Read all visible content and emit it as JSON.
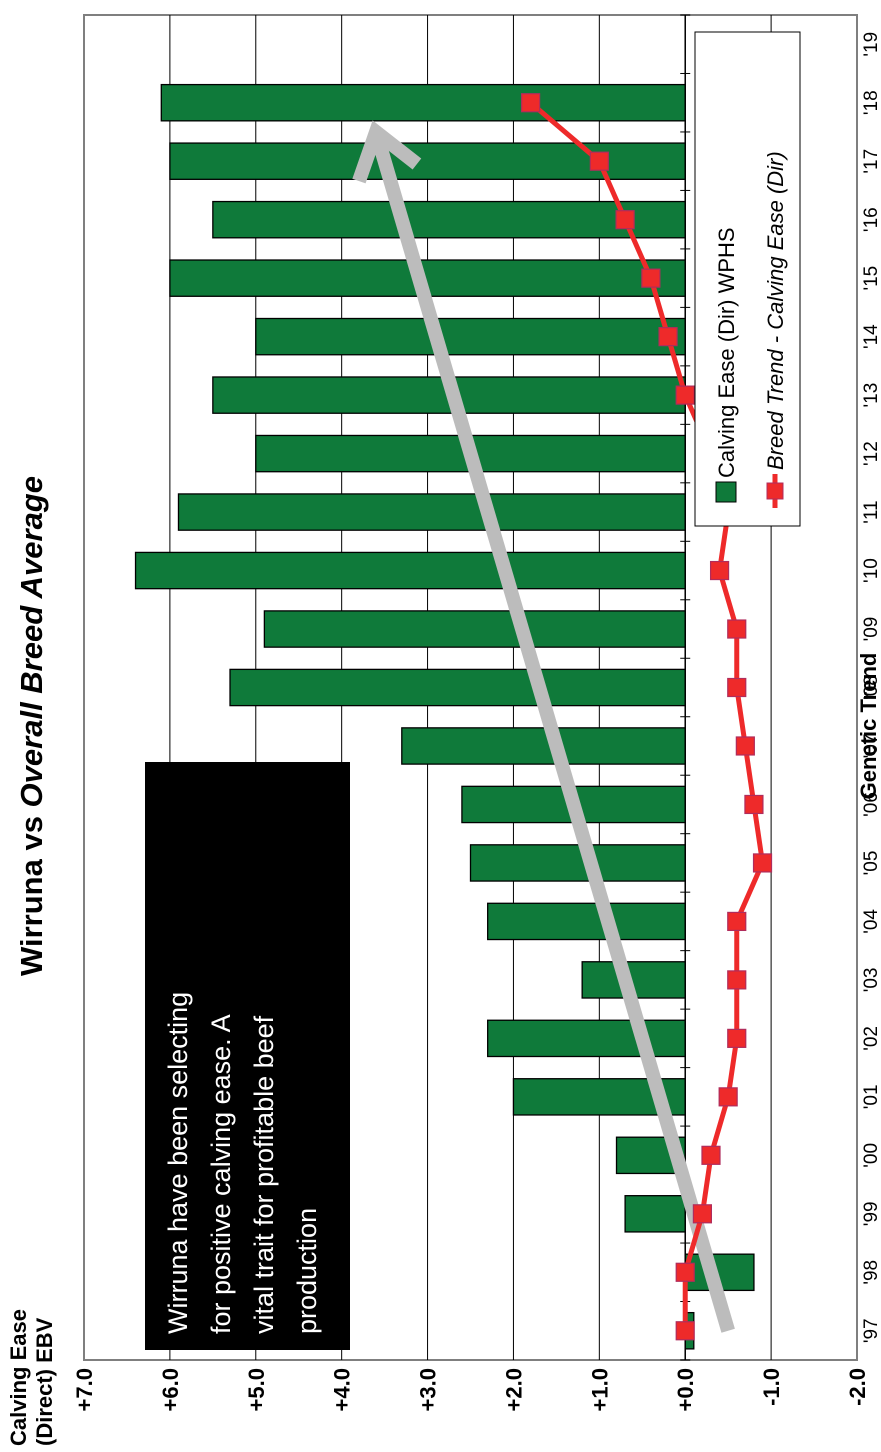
{
  "chart_data": {
    "type": "bar",
    "title": {
      "prefix": "Wirruna vs ",
      "emphasis": "Overall Breed Average"
    },
    "ylabel": [
      "Calving Ease",
      "(Direct) EBV"
    ],
    "xlabel": "Genetic Trend",
    "ylim": [
      -2.0,
      7.0
    ],
    "yticks": [
      "-2.0",
      "-1.0",
      "+0.0",
      "+1.0",
      "+2.0",
      "+3.0",
      "+4.0",
      "+5.0",
      "+6.0",
      "+7.0"
    ],
    "ytick_values": [
      -2,
      -1,
      0,
      1,
      2,
      3,
      4,
      5,
      6,
      7
    ],
    "xticks": [
      "'97",
      "'98",
      "'99",
      "'00",
      "'01",
      "'02",
      "'03",
      "'04",
      "'05",
      "'06",
      "'07",
      "'08",
      "'09",
      "'10",
      "'11",
      "'12",
      "'13",
      "'14",
      "'15",
      "'16",
      "'17",
      "'18",
      "'19"
    ],
    "grid": true,
    "legend_position": "top-right",
    "series": [
      {
        "name": "Calving Ease (Dir) WPHS",
        "kind": "bar",
        "color": "#0f7a3a",
        "categories": [
          "'97",
          "'98",
          "'99",
          "'00",
          "'01",
          "'02",
          "'03",
          "'04",
          "'05",
          "'06",
          "'07",
          "'08",
          "'09",
          "'10",
          "'11",
          "'12",
          "'13",
          "'14",
          "'15",
          "'16",
          "'17",
          "'18"
        ],
        "values": [
          -0.1,
          -0.8,
          0.7,
          0.8,
          2.0,
          2.3,
          1.2,
          2.3,
          2.5,
          2.6,
          3.3,
          5.3,
          4.9,
          6.4,
          5.9,
          5.0,
          5.5,
          5.0,
          6.0,
          5.5,
          6.0,
          6.1
        ]
      },
      {
        "name": "Breed Trend - Calving Ease (Dir)",
        "kind": "line",
        "color": "#ee2a2a",
        "categories": [
          "'97",
          "'98",
          "'99",
          "'00",
          "'01",
          "'02",
          "'03",
          "'04",
          "'05",
          "'06",
          "'07",
          "'08",
          "'09",
          "'10",
          "'11",
          "'12",
          "'13",
          "'14",
          "'15",
          "'16",
          "'17",
          "'18"
        ],
        "values": [
          0.0,
          0.0,
          -0.2,
          -0.3,
          -0.5,
          -0.6,
          -0.6,
          -0.6,
          -0.9,
          -0.8,
          -0.7,
          -0.6,
          -0.6,
          -0.4,
          -0.5,
          -0.3,
          0.0,
          0.2,
          0.4,
          0.7,
          1.0,
          1.8
        ]
      }
    ],
    "annotation": {
      "lines": [
        "Wirruna have been selecting",
        "for positive calving ease.  A",
        "vital trait for profitable beef",
        "production"
      ],
      "arrow_from": [
        "'97",
        -0.5
      ],
      "arrow_to": [
        "'17",
        3.6
      ],
      "arrow_color": "#bcbcbc"
    }
  },
  "colors": {
    "plot_border": "#7f7f7f",
    "grid": "#000000",
    "text": "#000000",
    "annotation_bg": "#000000",
    "annotation_text": "#ffffff"
  }
}
